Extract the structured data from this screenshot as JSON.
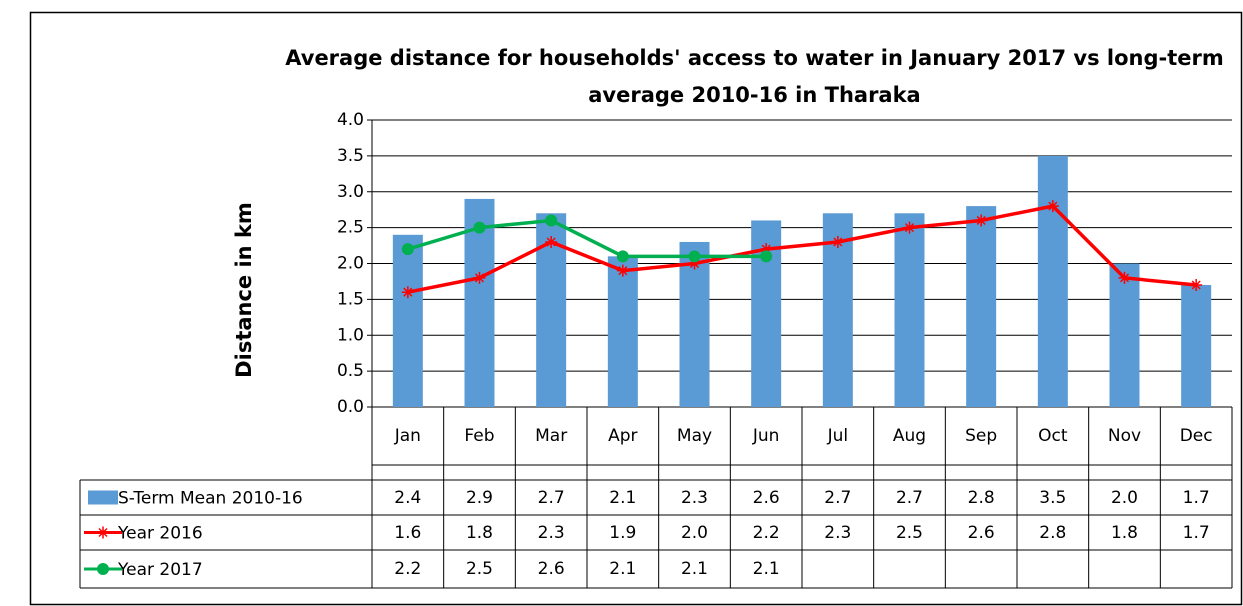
{
  "chart_data": {
    "type": "bar-line-table",
    "title": "Average distance for households' access to water in January 2017 vs long-term average 2010-16 in Tharaka",
    "y_label": "Distance in km",
    "categories": [
      "Jan",
      "Feb",
      "Mar",
      "Apr",
      "May",
      "Jun",
      "Jul",
      "Aug",
      "Sep",
      "Oct",
      "Nov",
      "Dec"
    ],
    "series": [
      {
        "name": "S-Term Mean 2010-16",
        "kind": "bar",
        "color": "#5b9bd5",
        "values": [
          2.4,
          2.9,
          2.7,
          2.1,
          2.3,
          2.6,
          2.7,
          2.7,
          2.8,
          3.5,
          2.0,
          1.7
        ],
        "value_labels": [
          "2.4",
          "2.9",
          "2.7",
          "2.1",
          "2.3",
          "2.6",
          "2.7",
          "2.7",
          "2.8",
          "3.5",
          "2.0",
          "1.7"
        ]
      },
      {
        "name": "Year 2016",
        "kind": "line",
        "marker": "star",
        "color": "#ff0000",
        "values": [
          1.6,
          1.8,
          2.3,
          1.9,
          2.0,
          2.2,
          2.3,
          2.5,
          2.6,
          2.8,
          1.8,
          1.7
        ],
        "value_labels": [
          "1.6",
          "1.8",
          "2.3",
          "1.9",
          "2.0",
          "2.2",
          "2.3",
          "2.5",
          "2.6",
          "2.8",
          "1.8",
          "1.7"
        ]
      },
      {
        "name": "Year 2017",
        "kind": "line",
        "marker": "circle",
        "color": "#00b050",
        "values": [
          2.2,
          2.5,
          2.6,
          2.1,
          2.1,
          2.1,
          null,
          null,
          null,
          null,
          null,
          null
        ],
        "value_labels": [
          "2.2",
          "2.5",
          "2.6",
          "2.1",
          "2.1",
          "2.1",
          null,
          null,
          null,
          null,
          null,
          null
        ]
      }
    ],
    "ylim": [
      0,
      4
    ],
    "yticks": [
      {
        "value": 0,
        "label": "0.0"
      },
      0.5,
      {
        "value": 1,
        "label": "1.0"
      },
      1.5,
      {
        "value": 2,
        "label": "2.0"
      },
      2.5,
      {
        "value": 3,
        "label": "3.0"
      },
      3.5,
      {
        "value": 4,
        "label": "4.0"
      }
    ],
    "grid": true
  }
}
